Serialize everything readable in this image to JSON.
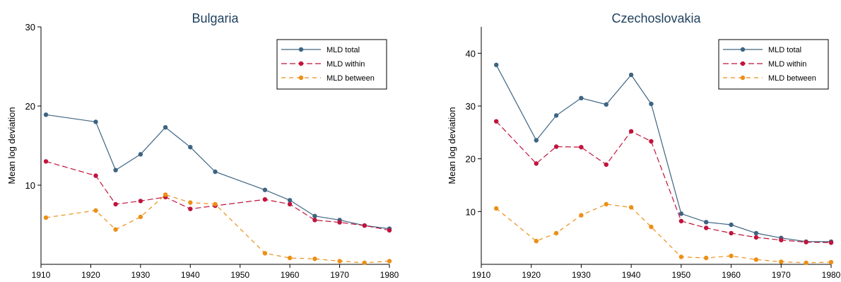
{
  "colors": {
    "total": "#3e6482",
    "within": "#c0143c",
    "between": "#ec8f16",
    "axis": "#000000",
    "legend_border": "#000000"
  },
  "chart_data": [
    {
      "type": "line",
      "title": "Bulgaria",
      "ylabel": "Mean log deviation",
      "xlabel": "",
      "xlim": [
        1910,
        1980
      ],
      "ylim": [
        0,
        30
      ],
      "xticks": [
        1910,
        1920,
        1930,
        1940,
        1950,
        1960,
        1970,
        1980
      ],
      "yticks": [
        10,
        20,
        30
      ],
      "grid": false,
      "legend": "top-right",
      "series": [
        {
          "name": "MLD total",
          "style": "solid",
          "x": [
            1911,
            1921,
            1925,
            1930,
            1935,
            1940,
            1945,
            1955,
            1960,
            1965,
            1970,
            1975,
            1980
          ],
          "y": [
            18.9,
            18.0,
            11.9,
            13.9,
            17.3,
            14.8,
            11.7,
            9.4,
            8.1,
            6.1,
            5.6,
            4.9,
            4.5
          ]
        },
        {
          "name": "MLD within",
          "style": "dashed",
          "x": [
            1911,
            1921,
            1925,
            1930,
            1935,
            1940,
            1945,
            1955,
            1960,
            1965,
            1970,
            1975,
            1980
          ],
          "y": [
            13.0,
            11.2,
            7.6,
            8.0,
            8.5,
            7.0,
            7.4,
            8.2,
            7.6,
            5.6,
            5.3,
            4.9,
            4.3
          ]
        },
        {
          "name": "MLD between",
          "style": "long-dashed",
          "x": [
            1911,
            1921,
            1925,
            1930,
            1935,
            1940,
            1945,
            1955,
            1960,
            1965,
            1970,
            1975,
            1980
          ],
          "y": [
            5.9,
            6.8,
            4.4,
            6.0,
            8.8,
            7.8,
            7.6,
            1.4,
            0.8,
            0.7,
            0.4,
            0.2,
            0.4
          ]
        }
      ]
    },
    {
      "type": "line",
      "title": "Czechoslovakia",
      "ylabel": "Mean log deviation",
      "xlabel": "",
      "xlim": [
        1910,
        1980
      ],
      "ylim": [
        0,
        45
      ],
      "xticks": [
        1910,
        1920,
        1930,
        1940,
        1950,
        1960,
        1970,
        1980
      ],
      "yticks": [
        10,
        20,
        30,
        40
      ],
      "grid": false,
      "legend": "top-right",
      "series": [
        {
          "name": "MLD total",
          "style": "solid",
          "x": [
            1913,
            1921,
            1925,
            1930,
            1935,
            1940,
            1944,
            1950,
            1955,
            1960,
            1965,
            1970,
            1975,
            1980
          ],
          "y": [
            37.8,
            23.5,
            28.2,
            31.5,
            30.3,
            35.9,
            30.4,
            9.6,
            8.0,
            7.5,
            5.9,
            5.0,
            4.3,
            4.3
          ]
        },
        {
          "name": "MLD within",
          "style": "dashed",
          "x": [
            1913,
            1921,
            1925,
            1930,
            1935,
            1940,
            1944,
            1950,
            1955,
            1960,
            1965,
            1970,
            1975,
            1980
          ],
          "y": [
            27.1,
            19.1,
            22.3,
            22.2,
            18.9,
            25.2,
            23.3,
            8.2,
            6.9,
            5.9,
            5.1,
            4.6,
            4.2,
            4.1
          ]
        },
        {
          "name": "MLD between",
          "style": "long-dashed",
          "x": [
            1913,
            1921,
            1925,
            1930,
            1935,
            1940,
            1944,
            1950,
            1955,
            1960,
            1965,
            1970,
            1975,
            1980
          ],
          "y": [
            10.6,
            4.4,
            5.9,
            9.3,
            11.4,
            10.8,
            7.1,
            1.4,
            1.2,
            1.6,
            0.9,
            0.5,
            0.3,
            0.4
          ]
        }
      ]
    }
  ]
}
